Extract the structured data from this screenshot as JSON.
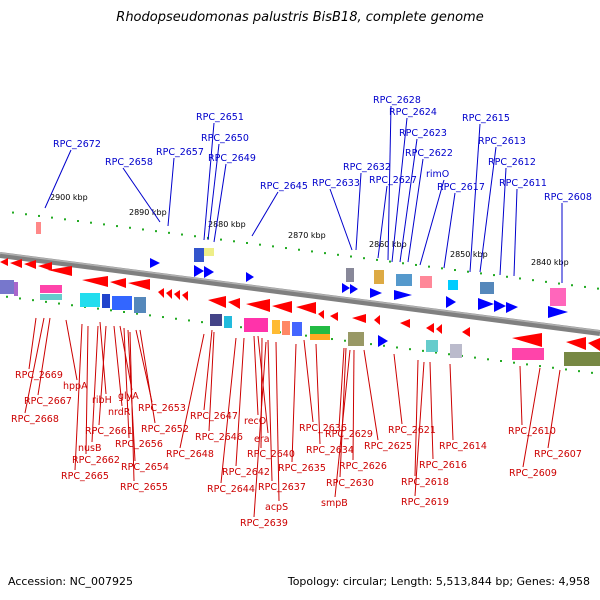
{
  "title": "Rhodopseudomonas palustris BisB18, complete genome",
  "footer": {
    "accession": "Accession: NC_007925",
    "info": "Topology: circular; Length: 5,513,844 bp; Genes: 4,958"
  },
  "ticks": [
    "2900 kbp",
    "2890 kbp",
    "2880 kbp",
    "2870 kbp",
    "2860 kbp",
    "2850 kbp",
    "2840 kbp"
  ],
  "top_labels": [
    "RPC_2672",
    "RPC_2658",
    "RPC_2657",
    "RPC_2651",
    "RPC_2650",
    "RPC_2649",
    "RPC_2645",
    "RPC_2633",
    "RPC_2632",
    "RPC_2628",
    "RPC_2624",
    "RPC_2623",
    "RPC_2627",
    "RPC_2622",
    "rimO",
    "RPC_2617",
    "RPC_2615",
    "RPC_2613",
    "RPC_2612",
    "RPC_2611",
    "RPC_2608"
  ],
  "bottom_labels": [
    "RPC_2669",
    "hppA",
    "RPC_2667",
    "ribH",
    "RPC_2668",
    "nrdR",
    "glyA",
    "RPC_2661",
    "nusB",
    "RPC_2653",
    "RPC_2656",
    "RPC_2652",
    "RPC_2662",
    "RPC_2654",
    "RPC_2665",
    "RPC_2655",
    "RPC_2647",
    "RPC_2646",
    "RPC_2648",
    "recO",
    "era",
    "RPC_2640",
    "RPC_2642",
    "RPC_2644",
    "RPC_2637",
    "acpS",
    "RPC_2639",
    "RPC_2636",
    "RPC_2635",
    "RPC_2634",
    "RPC_2629",
    "RPC_2630",
    "smpB",
    "RPC_2626",
    "RPC_2625",
    "RPC_2621",
    "RPC_2618",
    "RPC_2619",
    "RPC_2616",
    "RPC_2614",
    "RPC_2610",
    "RPC_2609",
    "RPC_2607"
  ]
}
